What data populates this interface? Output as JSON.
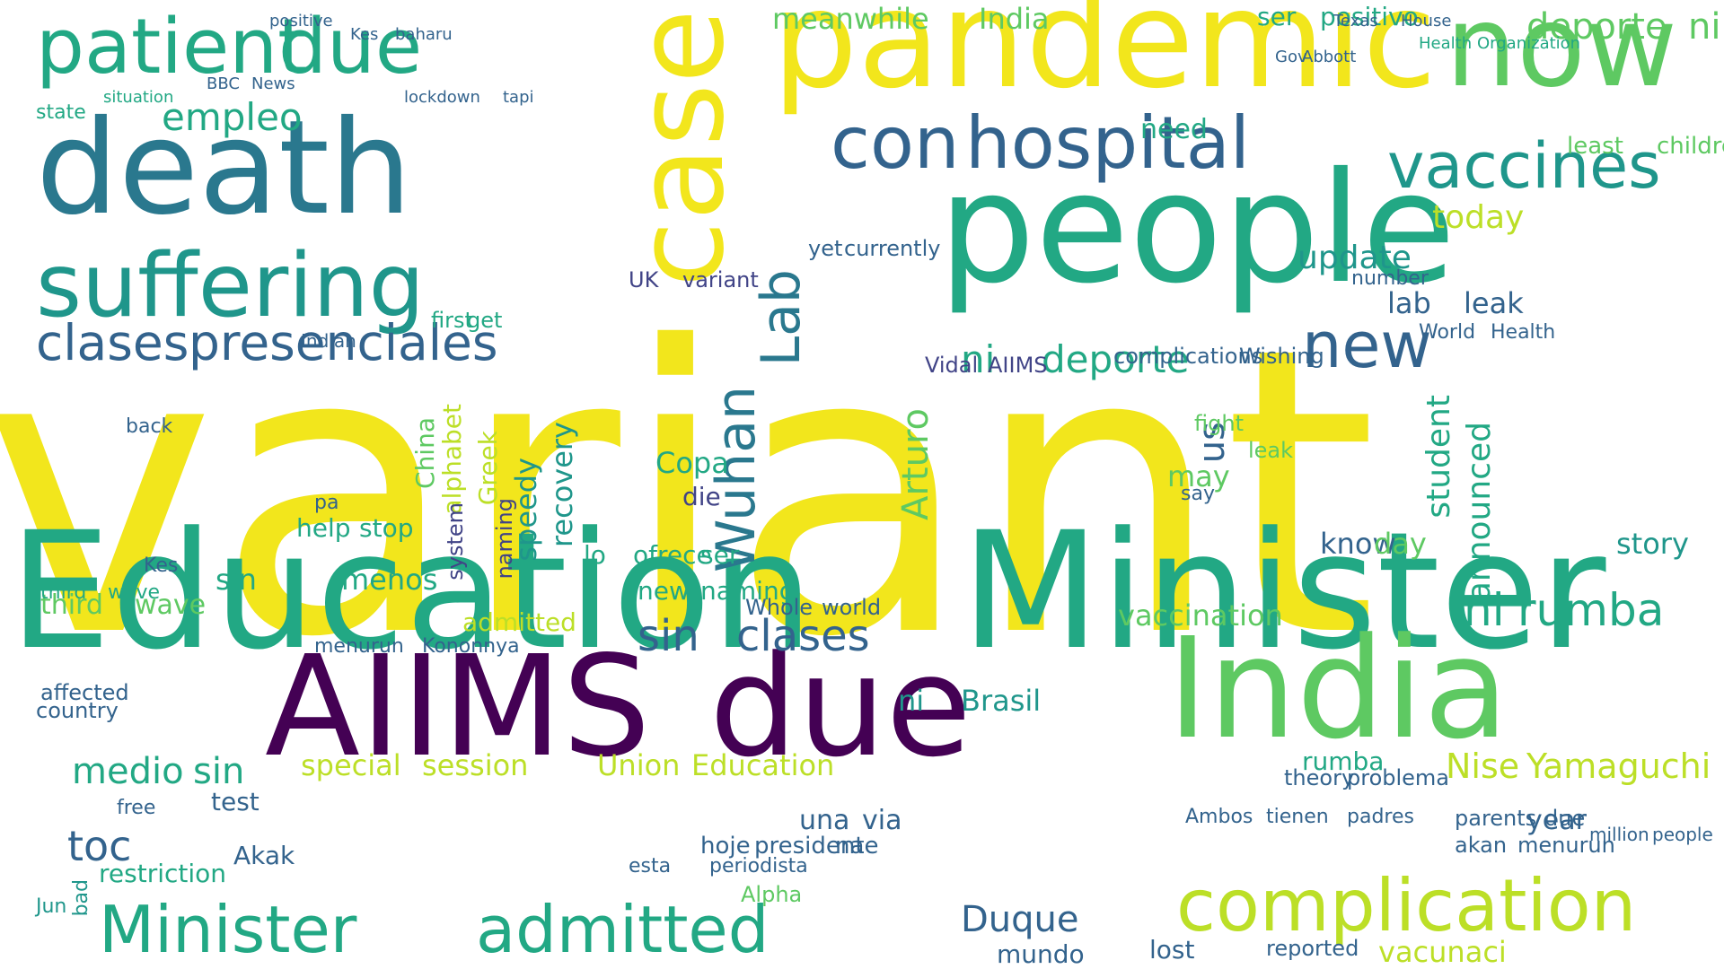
{
  "palette": {
    "yellow": "#f2e61c",
    "lime": "#bcdf27",
    "green": "#5ec962",
    "teal": "#22a884",
    "cyan": "#1f968b",
    "blue": "#2a788e",
    "indigo": "#33638d",
    "slate": "#414487",
    "purple": "#440154"
  },
  "words": [
    "variant",
    "Education",
    "Minister",
    "AIIMS",
    "due",
    "India",
    "people",
    "pandemic",
    "now",
    "death",
    "case",
    "patient",
    "due",
    "suffering",
    "con",
    "hospital",
    "vaccines",
    "complication",
    "Minister",
    "admitted",
    "clases",
    "presenciales",
    "Wuhan",
    "Lab",
    "new",
    "sin",
    "clases",
    "rumba",
    "ni",
    "Duque",
    "deporte",
    "ni",
    "empleo",
    "meanwhile",
    "India",
    "deporte",
    "ni",
    "ser",
    "positivo",
    "third",
    "wave",
    "special",
    "session",
    "Union",
    "Education",
    "lab",
    "leak",
    "complications",
    "Wishing",
    "medio",
    "sin",
    "test",
    "toc",
    "free",
    "vaccination",
    "Nise",
    "Yamaguchi",
    "parents",
    "due",
    "akan",
    "menurun",
    "speedy",
    "recovery",
    "Greek",
    "alphabet",
    "naming",
    "system",
    "update",
    "today",
    "us",
    "know",
    "day",
    "story",
    "Copa",
    "die",
    "lo",
    "ofrece",
    "ser",
    "may",
    "say",
    "mundo",
    "lost",
    "reported",
    "vacunaci",
    "restriction",
    "Alpha",
    "menurun",
    "Kononnya",
    "admitted",
    "year",
    "Akak",
    "new",
    "naming",
    "Whole",
    "world",
    "UK",
    "variant",
    "yet",
    "currently",
    "lockdown",
    "tapi",
    "BBC",
    "News",
    "state",
    "situation",
    "Gov",
    "Abbott",
    "Texas",
    "House",
    "Health",
    "Organization",
    "least",
    "children",
    "need",
    "World",
    "Health",
    "number",
    "fight",
    "leak",
    "theory",
    "problema",
    "rumba",
    "ni",
    "Brasil",
    "Arturo",
    "Vidal",
    "AIIMS",
    "Indian",
    "student",
    "announced",
    "China",
    "first",
    "get",
    "back",
    "third",
    "wave",
    "help",
    "stop",
    "pa",
    "sin",
    "menos",
    "una",
    "via",
    "presidente",
    "hoje",
    "na",
    "esta",
    "periodista",
    "Ambos",
    "tienen",
    "padres",
    "million",
    "people",
    "affected",
    "country",
    "bad",
    "Jun",
    "Kes",
    "Kes",
    "baharu",
    "positive"
  ]
}
